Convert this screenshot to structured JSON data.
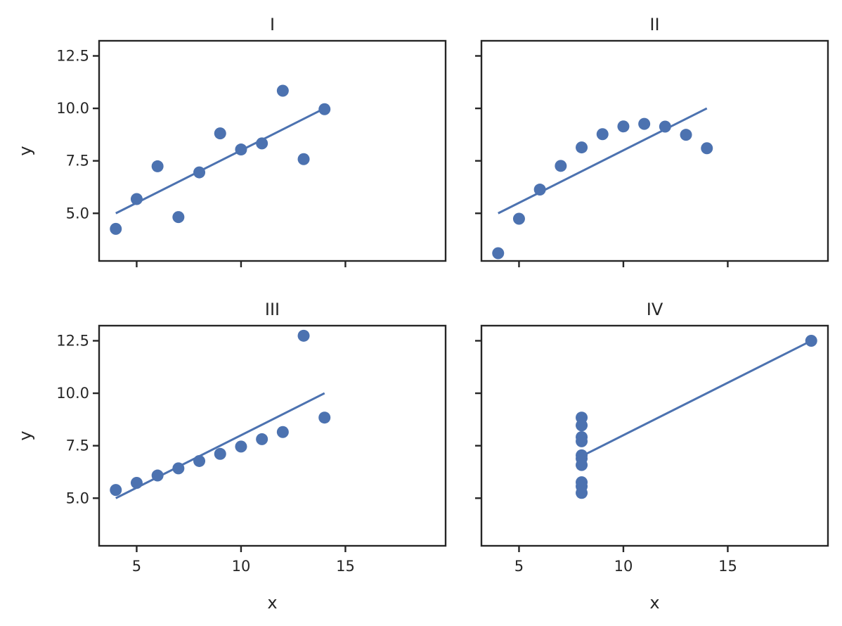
{
  "chart_data": [
    {
      "type": "scatter",
      "title": "I",
      "xlabel": "",
      "ylabel": "y",
      "xlim": [
        3.2,
        19.8
      ],
      "ylim": [
        2.73,
        13.22
      ],
      "xticks": [
        "5",
        "10",
        "15"
      ],
      "xtick_values": [
        5,
        10,
        15
      ],
      "show_xtick_labels": false,
      "yticks": [
        "5.0",
        "7.5",
        "10.0",
        "12.5"
      ],
      "ytick_values": [
        5.0,
        7.5,
        10.0,
        12.5
      ],
      "show_ytick_labels": true,
      "point_color": "#4c72b0",
      "points": [
        {
          "x": 4,
          "y": 4.26
        },
        {
          "x": 5,
          "y": 5.68
        },
        {
          "x": 6,
          "y": 7.24
        },
        {
          "x": 7,
          "y": 4.82
        },
        {
          "x": 8,
          "y": 6.95
        },
        {
          "x": 9,
          "y": 8.81
        },
        {
          "x": 10,
          "y": 8.04
        },
        {
          "x": 11,
          "y": 8.33
        },
        {
          "x": 12,
          "y": 10.84
        },
        {
          "x": 13,
          "y": 7.58
        },
        {
          "x": 14,
          "y": 9.96
        }
      ],
      "fit_line": {
        "x": [
          4,
          14
        ],
        "y": [
          5.0,
          10.0
        ]
      }
    },
    {
      "type": "scatter",
      "title": "II",
      "xlabel": "",
      "ylabel": "",
      "xlim": [
        3.2,
        19.8
      ],
      "ylim": [
        2.73,
        13.22
      ],
      "xticks": [
        "5",
        "10",
        "15"
      ],
      "xtick_values": [
        5,
        10,
        15
      ],
      "show_xtick_labels": false,
      "yticks": [
        "5.0",
        "7.5",
        "10.0",
        "12.5"
      ],
      "ytick_values": [
        5.0,
        7.5,
        10.0,
        12.5
      ],
      "show_ytick_labels": false,
      "point_color": "#4c72b0",
      "points": [
        {
          "x": 4,
          "y": 3.1
        },
        {
          "x": 5,
          "y": 4.74
        },
        {
          "x": 6,
          "y": 6.13
        },
        {
          "x": 7,
          "y": 7.26
        },
        {
          "x": 8,
          "y": 8.14
        },
        {
          "x": 9,
          "y": 8.77
        },
        {
          "x": 10,
          "y": 9.14
        },
        {
          "x": 11,
          "y": 9.26
        },
        {
          "x": 12,
          "y": 9.13
        },
        {
          "x": 13,
          "y": 8.74
        },
        {
          "x": 14,
          "y": 8.1
        }
      ],
      "fit_line": {
        "x": [
          4,
          14
        ],
        "y": [
          5.0,
          10.0
        ]
      }
    },
    {
      "type": "scatter",
      "title": "III",
      "xlabel": "x",
      "ylabel": "y",
      "xlim": [
        3.2,
        19.8
      ],
      "ylim": [
        2.73,
        13.22
      ],
      "xticks": [
        "5",
        "10",
        "15"
      ],
      "xtick_values": [
        5,
        10,
        15
      ],
      "show_xtick_labels": true,
      "yticks": [
        "5.0",
        "7.5",
        "10.0",
        "12.5"
      ],
      "ytick_values": [
        5.0,
        7.5,
        10.0,
        12.5
      ],
      "show_ytick_labels": true,
      "point_color": "#4c72b0",
      "points": [
        {
          "x": 4,
          "y": 5.39
        },
        {
          "x": 5,
          "y": 5.73
        },
        {
          "x": 6,
          "y": 6.08
        },
        {
          "x": 7,
          "y": 6.42
        },
        {
          "x": 8,
          "y": 6.77
        },
        {
          "x": 9,
          "y": 7.11
        },
        {
          "x": 10,
          "y": 7.46
        },
        {
          "x": 11,
          "y": 7.81
        },
        {
          "x": 12,
          "y": 8.15
        },
        {
          "x": 13,
          "y": 12.74
        },
        {
          "x": 14,
          "y": 8.84
        }
      ],
      "fit_line": {
        "x": [
          4,
          14
        ],
        "y": [
          5.0,
          10.0
        ]
      }
    },
    {
      "type": "scatter",
      "title": "IV",
      "xlabel": "x",
      "ylabel": "",
      "xlim": [
        3.2,
        19.8
      ],
      "ylim": [
        2.73,
        13.22
      ],
      "xticks": [
        "5",
        "10",
        "15"
      ],
      "xtick_values": [
        5,
        10,
        15
      ],
      "show_xtick_labels": true,
      "yticks": [
        "5.0",
        "7.5",
        "10.0",
        "12.5"
      ],
      "ytick_values": [
        5.0,
        7.5,
        10.0,
        12.5
      ],
      "show_ytick_labels": false,
      "point_color": "#4c72b0",
      "points": [
        {
          "x": 8,
          "y": 6.58
        },
        {
          "x": 8,
          "y": 5.76
        },
        {
          "x": 8,
          "y": 7.71
        },
        {
          "x": 8,
          "y": 8.84
        },
        {
          "x": 8,
          "y": 8.47
        },
        {
          "x": 8,
          "y": 7.04
        },
        {
          "x": 8,
          "y": 5.25
        },
        {
          "x": 19,
          "y": 12.5
        },
        {
          "x": 8,
          "y": 5.56
        },
        {
          "x": 8,
          "y": 7.91
        },
        {
          "x": 8,
          "y": 6.89
        }
      ],
      "fit_line": {
        "x": [
          8,
          19
        ],
        "y": [
          7.0,
          12.5
        ]
      }
    }
  ]
}
